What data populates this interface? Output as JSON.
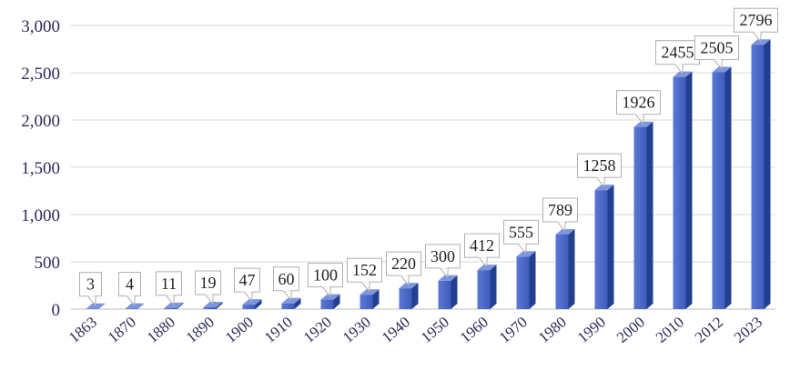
{
  "colors": {
    "bar_front": "#4a69c6",
    "bar_front_dark": "#3552ad",
    "bar_side": "#233f8f",
    "bar_top": "#7d95dc",
    "grid": "#d9d9d9",
    "tick_text": "#2b2b5a"
  },
  "chart_data": {
    "type": "bar",
    "title": "",
    "xlabel": "",
    "ylabel": "",
    "categories": [
      "1863",
      "1870",
      "1880",
      "1890",
      "1900",
      "1910",
      "1920",
      "1930",
      "1940",
      "1950",
      "1960",
      "1970",
      "1980",
      "1990",
      "2000",
      "2010",
      "2012",
      "2023"
    ],
    "values": [
      3,
      4,
      11,
      19,
      47,
      60,
      100,
      152,
      220,
      300,
      412,
      555,
      789,
      1258,
      1926,
      2455,
      2505,
      2796
    ],
    "data_labels": [
      "3",
      "4",
      "11",
      "19",
      "47",
      "60",
      "100",
      "152",
      "220",
      "300",
      "412",
      "555",
      "789",
      "1258",
      "1926",
      "2455",
      "2505",
      "2796"
    ],
    "ylim": [
      0,
      3000
    ],
    "yticks": [
      0,
      500,
      1000,
      1500,
      2000,
      2500,
      3000
    ],
    "ytick_labels": [
      "0",
      "500",
      "1,000",
      "1,500",
      "2,000",
      "2,500",
      "3,000"
    ],
    "grid": true,
    "legend": "none",
    "style": "3d-column"
  }
}
